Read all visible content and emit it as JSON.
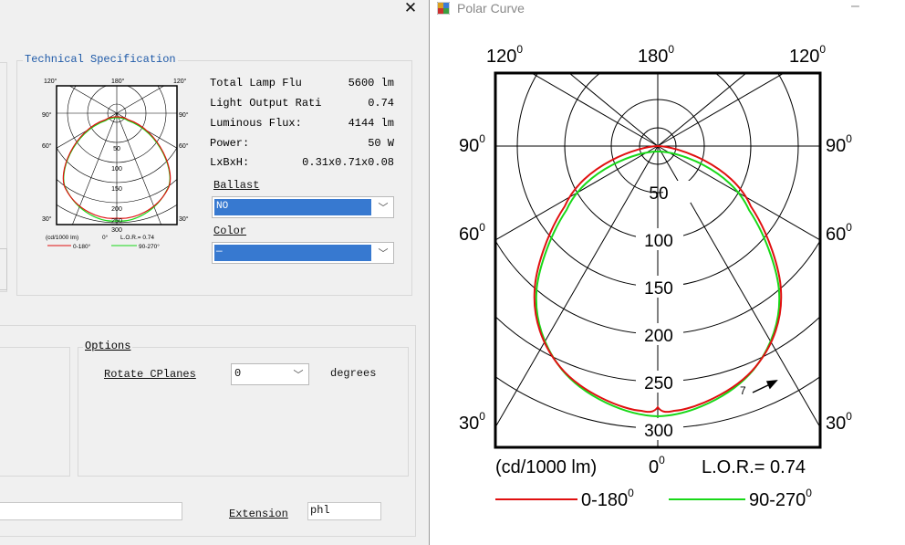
{
  "left_panel": {
    "close_glyph": "✕",
    "tech_spec": {
      "title": "Technical Specification",
      "rows": [
        {
          "label": "Total Lamp Flu",
          "value": "5600 lm"
        },
        {
          "label": "Light Output Rati",
          "value": "0.74"
        },
        {
          "label": "Luminous Flux:",
          "value": "4144 lm"
        },
        {
          "label": "Power:",
          "value": "50 W"
        },
        {
          "label": "LxBxH:",
          "value": "0.31x0.71x0.08"
        }
      ],
      "ballast_label": "Ballast",
      "ballast_value": "NO",
      "color_label": "Color",
      "color_value": "—"
    },
    "thumb": {
      "angle_top": [
        "120°",
        "180°",
        "120°"
      ],
      "angle_90": "90°",
      "angle_60": "60°",
      "angle_30": "30°",
      "rings": [
        "50",
        "100",
        "150",
        "200",
        "250",
        "300"
      ],
      "unit_text": "(cd/1000 lm)",
      "zero_text": "0°",
      "lor_text": "L.O.R.= 0.74",
      "legend_a": "0-180°",
      "legend_b": "90-270°"
    },
    "options": {
      "title": "Options",
      "rotate_label": "Rotate CPlanes",
      "rotate_value": "0",
      "rotate_unit": "degrees"
    },
    "extension": {
      "label": "Extension",
      "value": "phl"
    }
  },
  "polar_window": {
    "title": "Polar Curve",
    "min_glyph": "–",
    "angle_120": "120",
    "angle_180": "180",
    "angle_90": "90",
    "angle_60": "60",
    "angle_30": "30",
    "angle_0": "0",
    "deg": "0",
    "rings": [
      "50",
      "100",
      "150",
      "200",
      "250",
      "300"
    ],
    "unit_text": "(cd/1000 lm)",
    "lor_text": "L.O.R.= 0.74",
    "legend_a": "0-180",
    "legend_b": "90-270",
    "marker": "7"
  },
  "chart_data": {
    "type": "polar",
    "angular_labels": [
      "0°",
      "30°",
      "60°",
      "90°",
      "120°",
      "180°"
    ],
    "radial_ticks": [
      50,
      100,
      150,
      200,
      250,
      300
    ],
    "radial_unit": "cd/1000 lm",
    "lor": 0.74,
    "series": [
      {
        "name": "0-180°",
        "color": "#e01010",
        "points": [
          [
            0,
            292
          ],
          [
            10,
            295
          ],
          [
            20,
            297
          ],
          [
            30,
            283
          ],
          [
            40,
            235
          ],
          [
            50,
            175
          ],
          [
            60,
            123
          ],
          [
            70,
            83
          ],
          [
            80,
            45
          ],
          [
            90,
            8
          ]
        ]
      },
      {
        "name": "90-270°",
        "color": "#18d818",
        "points": [
          [
            0,
            300
          ],
          [
            10,
            301
          ],
          [
            20,
            300
          ],
          [
            30,
            287
          ],
          [
            40,
            237
          ],
          [
            50,
            176
          ],
          [
            60,
            122
          ],
          [
            70,
            80
          ],
          [
            80,
            43
          ],
          [
            90,
            6
          ]
        ]
      }
    ]
  },
  "colors": {
    "curve_a": "#e01010",
    "curve_b": "#18d818",
    "selection": "#3779d0"
  }
}
